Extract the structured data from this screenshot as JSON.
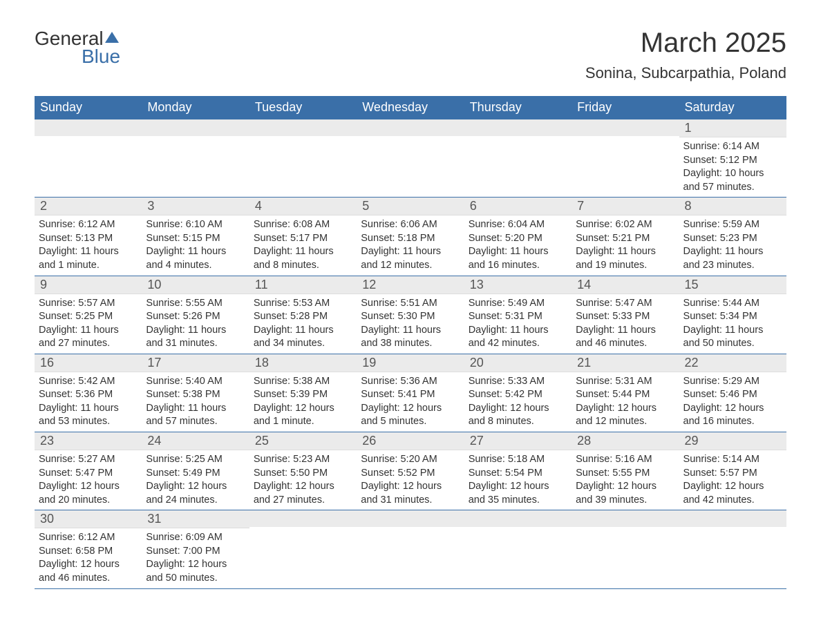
{
  "logo": {
    "text1": "General",
    "text2": "Blue"
  },
  "title": "March 2025",
  "location": "Sonina, Subcarpathia, Poland",
  "day_headers": [
    "Sunday",
    "Monday",
    "Tuesday",
    "Wednesday",
    "Thursday",
    "Friday",
    "Saturday"
  ],
  "colors": {
    "header_bg": "#3a6fa8",
    "header_text": "#ffffff",
    "day_number_bg": "#ebebeb",
    "text": "#333333",
    "border": "#3a6fa8"
  },
  "fonts": {
    "title_size": 40,
    "location_size": 22,
    "header_size": 18,
    "day_number_size": 18,
    "content_size": 14.5
  },
  "weeks": [
    [
      {
        "day": "",
        "sunrise": "",
        "sunset": "",
        "daylight1": "",
        "daylight2": ""
      },
      {
        "day": "",
        "sunrise": "",
        "sunset": "",
        "daylight1": "",
        "daylight2": ""
      },
      {
        "day": "",
        "sunrise": "",
        "sunset": "",
        "daylight1": "",
        "daylight2": ""
      },
      {
        "day": "",
        "sunrise": "",
        "sunset": "",
        "daylight1": "",
        "daylight2": ""
      },
      {
        "day": "",
        "sunrise": "",
        "sunset": "",
        "daylight1": "",
        "daylight2": ""
      },
      {
        "day": "",
        "sunrise": "",
        "sunset": "",
        "daylight1": "",
        "daylight2": ""
      },
      {
        "day": "1",
        "sunrise": "Sunrise: 6:14 AM",
        "sunset": "Sunset: 5:12 PM",
        "daylight1": "Daylight: 10 hours",
        "daylight2": "and 57 minutes."
      }
    ],
    [
      {
        "day": "2",
        "sunrise": "Sunrise: 6:12 AM",
        "sunset": "Sunset: 5:13 PM",
        "daylight1": "Daylight: 11 hours",
        "daylight2": "and 1 minute."
      },
      {
        "day": "3",
        "sunrise": "Sunrise: 6:10 AM",
        "sunset": "Sunset: 5:15 PM",
        "daylight1": "Daylight: 11 hours",
        "daylight2": "and 4 minutes."
      },
      {
        "day": "4",
        "sunrise": "Sunrise: 6:08 AM",
        "sunset": "Sunset: 5:17 PM",
        "daylight1": "Daylight: 11 hours",
        "daylight2": "and 8 minutes."
      },
      {
        "day": "5",
        "sunrise": "Sunrise: 6:06 AM",
        "sunset": "Sunset: 5:18 PM",
        "daylight1": "Daylight: 11 hours",
        "daylight2": "and 12 minutes."
      },
      {
        "day": "6",
        "sunrise": "Sunrise: 6:04 AM",
        "sunset": "Sunset: 5:20 PM",
        "daylight1": "Daylight: 11 hours",
        "daylight2": "and 16 minutes."
      },
      {
        "day": "7",
        "sunrise": "Sunrise: 6:02 AM",
        "sunset": "Sunset: 5:21 PM",
        "daylight1": "Daylight: 11 hours",
        "daylight2": "and 19 minutes."
      },
      {
        "day": "8",
        "sunrise": "Sunrise: 5:59 AM",
        "sunset": "Sunset: 5:23 PM",
        "daylight1": "Daylight: 11 hours",
        "daylight2": "and 23 minutes."
      }
    ],
    [
      {
        "day": "9",
        "sunrise": "Sunrise: 5:57 AM",
        "sunset": "Sunset: 5:25 PM",
        "daylight1": "Daylight: 11 hours",
        "daylight2": "and 27 minutes."
      },
      {
        "day": "10",
        "sunrise": "Sunrise: 5:55 AM",
        "sunset": "Sunset: 5:26 PM",
        "daylight1": "Daylight: 11 hours",
        "daylight2": "and 31 minutes."
      },
      {
        "day": "11",
        "sunrise": "Sunrise: 5:53 AM",
        "sunset": "Sunset: 5:28 PM",
        "daylight1": "Daylight: 11 hours",
        "daylight2": "and 34 minutes."
      },
      {
        "day": "12",
        "sunrise": "Sunrise: 5:51 AM",
        "sunset": "Sunset: 5:30 PM",
        "daylight1": "Daylight: 11 hours",
        "daylight2": "and 38 minutes."
      },
      {
        "day": "13",
        "sunrise": "Sunrise: 5:49 AM",
        "sunset": "Sunset: 5:31 PM",
        "daylight1": "Daylight: 11 hours",
        "daylight2": "and 42 minutes."
      },
      {
        "day": "14",
        "sunrise": "Sunrise: 5:47 AM",
        "sunset": "Sunset: 5:33 PM",
        "daylight1": "Daylight: 11 hours",
        "daylight2": "and 46 minutes."
      },
      {
        "day": "15",
        "sunrise": "Sunrise: 5:44 AM",
        "sunset": "Sunset: 5:34 PM",
        "daylight1": "Daylight: 11 hours",
        "daylight2": "and 50 minutes."
      }
    ],
    [
      {
        "day": "16",
        "sunrise": "Sunrise: 5:42 AM",
        "sunset": "Sunset: 5:36 PM",
        "daylight1": "Daylight: 11 hours",
        "daylight2": "and 53 minutes."
      },
      {
        "day": "17",
        "sunrise": "Sunrise: 5:40 AM",
        "sunset": "Sunset: 5:38 PM",
        "daylight1": "Daylight: 11 hours",
        "daylight2": "and 57 minutes."
      },
      {
        "day": "18",
        "sunrise": "Sunrise: 5:38 AM",
        "sunset": "Sunset: 5:39 PM",
        "daylight1": "Daylight: 12 hours",
        "daylight2": "and 1 minute."
      },
      {
        "day": "19",
        "sunrise": "Sunrise: 5:36 AM",
        "sunset": "Sunset: 5:41 PM",
        "daylight1": "Daylight: 12 hours",
        "daylight2": "and 5 minutes."
      },
      {
        "day": "20",
        "sunrise": "Sunrise: 5:33 AM",
        "sunset": "Sunset: 5:42 PM",
        "daylight1": "Daylight: 12 hours",
        "daylight2": "and 8 minutes."
      },
      {
        "day": "21",
        "sunrise": "Sunrise: 5:31 AM",
        "sunset": "Sunset: 5:44 PM",
        "daylight1": "Daylight: 12 hours",
        "daylight2": "and 12 minutes."
      },
      {
        "day": "22",
        "sunrise": "Sunrise: 5:29 AM",
        "sunset": "Sunset: 5:46 PM",
        "daylight1": "Daylight: 12 hours",
        "daylight2": "and 16 minutes."
      }
    ],
    [
      {
        "day": "23",
        "sunrise": "Sunrise: 5:27 AM",
        "sunset": "Sunset: 5:47 PM",
        "daylight1": "Daylight: 12 hours",
        "daylight2": "and 20 minutes."
      },
      {
        "day": "24",
        "sunrise": "Sunrise: 5:25 AM",
        "sunset": "Sunset: 5:49 PM",
        "daylight1": "Daylight: 12 hours",
        "daylight2": "and 24 minutes."
      },
      {
        "day": "25",
        "sunrise": "Sunrise: 5:23 AM",
        "sunset": "Sunset: 5:50 PM",
        "daylight1": "Daylight: 12 hours",
        "daylight2": "and 27 minutes."
      },
      {
        "day": "26",
        "sunrise": "Sunrise: 5:20 AM",
        "sunset": "Sunset: 5:52 PM",
        "daylight1": "Daylight: 12 hours",
        "daylight2": "and 31 minutes."
      },
      {
        "day": "27",
        "sunrise": "Sunrise: 5:18 AM",
        "sunset": "Sunset: 5:54 PM",
        "daylight1": "Daylight: 12 hours",
        "daylight2": "and 35 minutes."
      },
      {
        "day": "28",
        "sunrise": "Sunrise: 5:16 AM",
        "sunset": "Sunset: 5:55 PM",
        "daylight1": "Daylight: 12 hours",
        "daylight2": "and 39 minutes."
      },
      {
        "day": "29",
        "sunrise": "Sunrise: 5:14 AM",
        "sunset": "Sunset: 5:57 PM",
        "daylight1": "Daylight: 12 hours",
        "daylight2": "and 42 minutes."
      }
    ],
    [
      {
        "day": "30",
        "sunrise": "Sunrise: 6:12 AM",
        "sunset": "Sunset: 6:58 PM",
        "daylight1": "Daylight: 12 hours",
        "daylight2": "and 46 minutes."
      },
      {
        "day": "31",
        "sunrise": "Sunrise: 6:09 AM",
        "sunset": "Sunset: 7:00 PM",
        "daylight1": "Daylight: 12 hours",
        "daylight2": "and 50 minutes."
      },
      {
        "day": "",
        "sunrise": "",
        "sunset": "",
        "daylight1": "",
        "daylight2": ""
      },
      {
        "day": "",
        "sunrise": "",
        "sunset": "",
        "daylight1": "",
        "daylight2": ""
      },
      {
        "day": "",
        "sunrise": "",
        "sunset": "",
        "daylight1": "",
        "daylight2": ""
      },
      {
        "day": "",
        "sunrise": "",
        "sunset": "",
        "daylight1": "",
        "daylight2": ""
      },
      {
        "day": "",
        "sunrise": "",
        "sunset": "",
        "daylight1": "",
        "daylight2": ""
      }
    ]
  ]
}
